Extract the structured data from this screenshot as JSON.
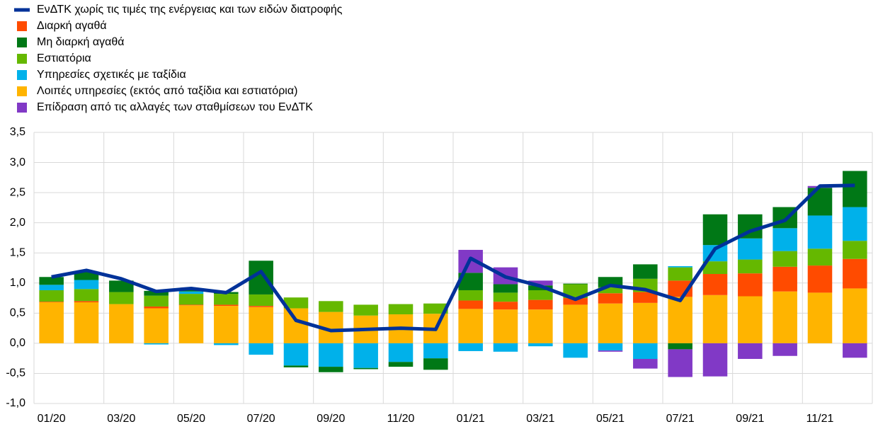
{
  "chart_data": {
    "type": "bar",
    "categories": [
      "01/20",
      null,
      "03/20",
      null,
      "05/20",
      null,
      "07/20",
      null,
      "09/20",
      null,
      "11/20",
      null,
      "01/21",
      null,
      "03/21",
      null,
      "05/21",
      null,
      "07/21",
      null,
      "09/21",
      null,
      "11/21",
      null
    ],
    "series": [
      {
        "name": "ΕνΔΤΚ χωρίς τις τιμές της ενέργειας και των ειδών διατροφής",
        "type": "line",
        "color": "#003299",
        "values": [
          1.1,
          1.21,
          1.07,
          0.86,
          0.91,
          0.84,
          1.19,
          0.38,
          0.21,
          0.23,
          0.25,
          0.23,
          1.41,
          1.1,
          0.95,
          0.73,
          0.96,
          0.89,
          0.71,
          1.57,
          1.86,
          2.04,
          2.61,
          2.62
        ]
      },
      {
        "name": "Διαρκή αγαθά",
        "color": "#ff4b00",
        "values": [
          0.01,
          0.02,
          0,
          0.03,
          0.01,
          0.02,
          0.02,
          0,
          0,
          0,
          0,
          0,
          0.14,
          0.13,
          0.16,
          0.11,
          0.17,
          0.18,
          0.27,
          0.35,
          0.38,
          0.41,
          0.45,
          0.49
        ]
      },
      {
        "name": "Μη διαρκή αγαθά",
        "color": "#007816",
        "values": [
          0.13,
          0.14,
          0.19,
          0.08,
          0.02,
          0.03,
          0.56,
          -0.03,
          -0.09,
          -0.02,
          -0.08,
          -0.19,
          0.29,
          0.14,
          0.08,
          0.01,
          0.17,
          0.24,
          -0.1,
          0.51,
          0.4,
          0.35,
          0.46,
          0.6
        ]
      },
      {
        "name": "Εστιατόρια",
        "color": "#65b800",
        "values": [
          0.19,
          0.2,
          0.2,
          0.18,
          0.18,
          0.18,
          0.19,
          0.18,
          0.18,
          0.18,
          0.17,
          0.17,
          0.17,
          0.15,
          0.16,
          0.23,
          0.1,
          0.22,
          0.22,
          0.21,
          0.23,
          0.26,
          0.28,
          0.3
        ]
      },
      {
        "name": "Υπηρεσίες σχετικές με ταξίδια",
        "color": "#00b1ea",
        "values": [
          0.09,
          0.15,
          0,
          -0.02,
          0.04,
          -0.03,
          -0.19,
          -0.37,
          -0.39,
          -0.41,
          -0.31,
          -0.25,
          -0.13,
          -0.14,
          -0.05,
          -0.24,
          -0.12,
          -0.26,
          0.02,
          0.27,
          0.35,
          0.38,
          0.55,
          0.56
        ]
      },
      {
        "name": "Λοιπές υπηρεσίες (εκτός από ταξίδια και εστιατόρια)",
        "color": "#ffb400",
        "values": [
          0.68,
          0.68,
          0.65,
          0.58,
          0.63,
          0.62,
          0.6,
          0.58,
          0.52,
          0.46,
          0.48,
          0.49,
          0.57,
          0.56,
          0.56,
          0.64,
          0.66,
          0.67,
          0.77,
          0.8,
          0.78,
          0.86,
          0.84,
          0.91
        ]
      },
      {
        "name": "Επίδραση από τις αλλαγές των σταθμίσεων του ΕνΔΤΚ",
        "color": "#8139c6",
        "values": [
          0,
          0,
          0,
          0,
          0,
          0,
          0,
          0,
          0,
          0,
          0,
          0,
          0.38,
          0.28,
          0.08,
          0,
          -0.02,
          -0.16,
          -0.46,
          -0.55,
          -0.26,
          -0.21,
          0.03,
          -0.24
        ]
      }
    ],
    "stack_order": [
      5,
      1,
      3,
      4,
      2,
      6
    ],
    "ylim": [
      -1.0,
      3.5
    ],
    "yticks": [
      {
        "value": -1.0,
        "label": "-1,0"
      },
      {
        "value": -0.5,
        "label": "-0,5"
      },
      {
        "value": 0,
        "label": "0,0"
      },
      {
        "value": 0.5,
        "label": "0,5"
      },
      {
        "value": 1.0,
        "label": "1,0"
      },
      {
        "value": 1.5,
        "label": "1,5"
      },
      {
        "value": 2.0,
        "label": "2,0"
      },
      {
        "value": 2.5,
        "label": "2,5"
      },
      {
        "value": 3.0,
        "label": "3,0"
      },
      {
        "value": 3.5,
        "label": "3,5"
      }
    ],
    "grid": true
  }
}
